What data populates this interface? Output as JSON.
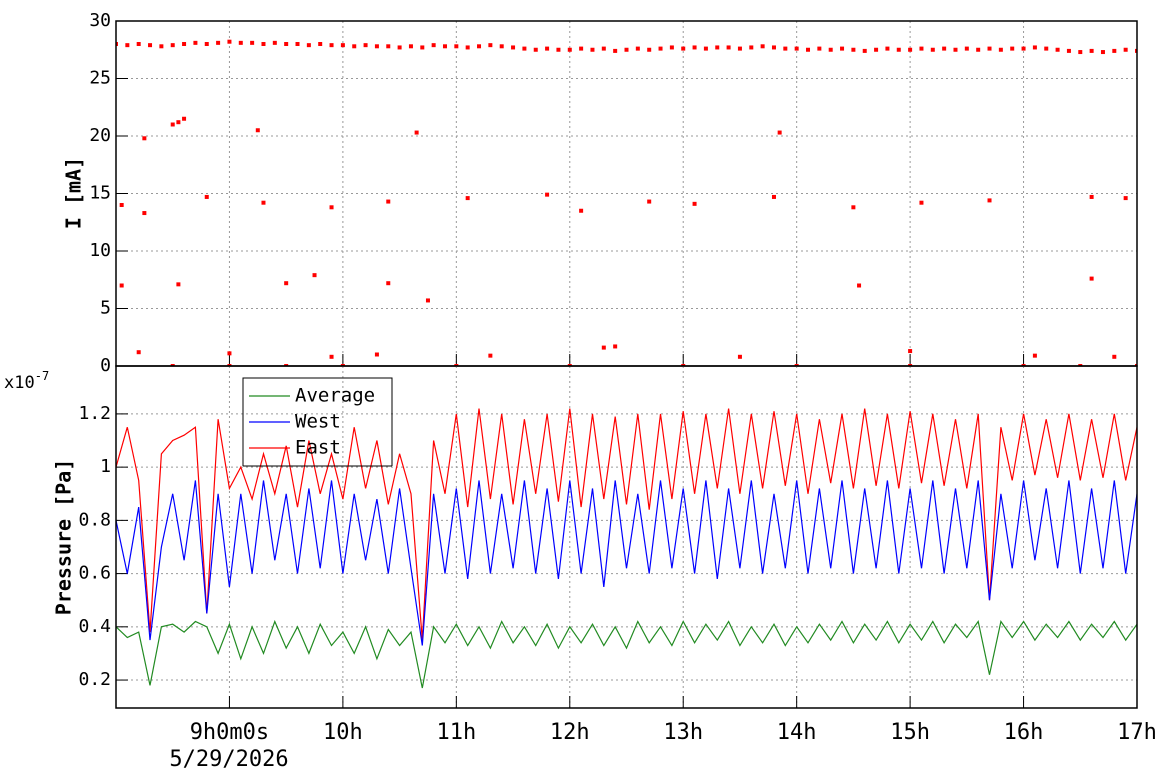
{
  "chart_data": [
    {
      "type": "scatter",
      "y_label": "I [mA]",
      "color": "#ff0000",
      "grid": true,
      "xlim": [
        8,
        17
      ],
      "ylim": [
        0,
        30
      ],
      "yticks": [
        0,
        5,
        10,
        15,
        20,
        25,
        30
      ],
      "xticks": [
        9,
        10,
        11,
        12,
        13,
        14,
        15,
        16,
        17
      ],
      "x": [
        8,
        8.1,
        8.2,
        8.3,
        8.4,
        8.5,
        8.6,
        8.7,
        8.8,
        8.9,
        9,
        9.1,
        9.2,
        9.3,
        9.4,
        9.5,
        9.6,
        9.7,
        9.8,
        9.9,
        10,
        10.1,
        10.2,
        10.3,
        10.4,
        10.5,
        10.6,
        10.7,
        10.8,
        10.9,
        11,
        11.1,
        11.2,
        11.3,
        11.4,
        11.5,
        11.6,
        11.7,
        11.8,
        11.9,
        12,
        12.1,
        12.2,
        12.3,
        12.4,
        12.5,
        12.6,
        12.7,
        12.8,
        12.9,
        13,
        13.1,
        13.2,
        13.3,
        13.4,
        13.5,
        13.6,
        13.7,
        13.8,
        13.9,
        14,
        14.1,
        14.2,
        14.3,
        14.4,
        14.5,
        14.6,
        14.7,
        14.8,
        14.9,
        15,
        15.1,
        15.2,
        15.3,
        15.4,
        15.5,
        15.6,
        15.7,
        15.8,
        15.9,
        16,
        16.1,
        16.2,
        16.3,
        16.4,
        16.5,
        16.6,
        16.7,
        16.8,
        16.9,
        17,
        8.55,
        8.5,
        8.6,
        8.25,
        9.25,
        10.65,
        13.85,
        8.8,
        9.3,
        9.9,
        10.4,
        11.1,
        11.8,
        12.1,
        12.7,
        13.1,
        13.8,
        14.5,
        15.1,
        15.7,
        16.6,
        16.9,
        9.5,
        9.75,
        10.4,
        10.75,
        14.55,
        16.6,
        8.55,
        8.05,
        8.05,
        8.25,
        8.2,
        9,
        9.9,
        10.3,
        11.3,
        12.3,
        12.4,
        13.5,
        15,
        16.1,
        16.8,
        8.5,
        9,
        9.5,
        10,
        11,
        12,
        13,
        14,
        15,
        16,
        16.5,
        17
      ],
      "values": [
        28,
        27.9,
        28,
        27.9,
        27.8,
        27.9,
        28,
        28.1,
        28,
        28.1,
        28.2,
        28.1,
        28.1,
        28,
        28.1,
        28,
        28,
        27.9,
        28,
        27.9,
        27.9,
        27.8,
        27.9,
        27.8,
        27.8,
        27.7,
        27.8,
        27.7,
        27.9,
        27.8,
        27.8,
        27.7,
        27.8,
        27.9,
        27.8,
        27.7,
        27.6,
        27.5,
        27.6,
        27.5,
        27.5,
        27.6,
        27.5,
        27.6,
        27.4,
        27.5,
        27.6,
        27.5,
        27.6,
        27.7,
        27.6,
        27.7,
        27.6,
        27.7,
        27.7,
        27.6,
        27.7,
        27.8,
        27.7,
        27.6,
        27.6,
        27.5,
        27.6,
        27.5,
        27.6,
        27.5,
        27.4,
        27.5,
        27.6,
        27.5,
        27.5,
        27.6,
        27.5,
        27.6,
        27.5,
        27.6,
        27.5,
        27.6,
        27.5,
        27.6,
        27.6,
        27.7,
        27.6,
        27.5,
        27.4,
        27.3,
        27.4,
        27.3,
        27.4,
        27.5,
        27.4,
        21.2,
        21,
        21.5,
        19.8,
        20.5,
        20.3,
        20.3,
        14.7,
        14.2,
        13.8,
        14.3,
        14.6,
        14.9,
        13.5,
        14.3,
        14.1,
        14.7,
        13.8,
        14.2,
        14.4,
        14.7,
        14.6,
        7.2,
        7.9,
        7.2,
        5.7,
        7,
        7.6,
        7.1,
        7,
        14,
        13.3,
        1.2,
        1.1,
        0.8,
        1,
        0.9,
        1.6,
        1.7,
        0.8,
        1.3,
        0.9,
        0.8,
        0,
        0,
        0,
        0,
        0,
        0,
        0,
        0,
        0,
        0,
        0,
        0
      ]
    },
    {
      "type": "line",
      "y_label": "Pressure [Pa]",
      "y_multiplier": {
        "base": "x10",
        "exponent": "-7"
      },
      "grid": true,
      "time_offset_label": "5/29/2026",
      "xlim": [
        8,
        17
      ],
      "ylim": [
        0.095,
        1.38
      ],
      "yticks": [
        0.2,
        0.4,
        0.6,
        0.8,
        1,
        1.2
      ],
      "xticks": [
        {
          "value": 9,
          "label": "9h0m0s"
        },
        {
          "value": 10,
          "label": "10h"
        },
        {
          "value": 11,
          "label": "11h"
        },
        {
          "value": 12,
          "label": "12h"
        },
        {
          "value": 13,
          "label": "13h"
        },
        {
          "value": 14,
          "label": "14h"
        },
        {
          "value": 15,
          "label": "15h"
        },
        {
          "value": 16,
          "label": "16h"
        },
        {
          "value": 17,
          "label": "17h"
        }
      ],
      "x": [
        8,
        8.1,
        8.2,
        8.3,
        8.4,
        8.5,
        8.6,
        8.7,
        8.8,
        8.9,
        9,
        9.1,
        9.2,
        9.3,
        9.4,
        9.5,
        9.6,
        9.7,
        9.8,
        9.9,
        10,
        10.1,
        10.2,
        10.3,
        10.4,
        10.5,
        10.6,
        10.7,
        10.8,
        10.9,
        11,
        11.1,
        11.2,
        11.3,
        11.4,
        11.5,
        11.6,
        11.7,
        11.8,
        11.9,
        12,
        12.1,
        12.2,
        12.3,
        12.4,
        12.5,
        12.6,
        12.7,
        12.8,
        12.9,
        13,
        13.1,
        13.2,
        13.3,
        13.4,
        13.5,
        13.6,
        13.7,
        13.8,
        13.9,
        14,
        14.1,
        14.2,
        14.3,
        14.4,
        14.5,
        14.6,
        14.7,
        14.8,
        14.9,
        15,
        15.1,
        15.2,
        15.3,
        15.4,
        15.5,
        15.6,
        15.7,
        15.8,
        15.9,
        16,
        16.1,
        16.2,
        16.3,
        16.4,
        16.5,
        16.6,
        16.7,
        16.8,
        16.9,
        17
      ],
      "series": [
        {
          "name": "Average",
          "color": "#228b22",
          "values": [
            0.4,
            0.36,
            0.38,
            0.18,
            0.4,
            0.41,
            0.38,
            0.42,
            0.4,
            0.3,
            0.41,
            0.28,
            0.4,
            0.3,
            0.42,
            0.32,
            0.4,
            0.3,
            0.41,
            0.33,
            0.38,
            0.3,
            0.4,
            0.28,
            0.39,
            0.33,
            0.38,
            0.17,
            0.4,
            0.34,
            0.41,
            0.33,
            0.4,
            0.32,
            0.42,
            0.34,
            0.4,
            0.33,
            0.41,
            0.32,
            0.4,
            0.34,
            0.41,
            0.33,
            0.4,
            0.32,
            0.42,
            0.34,
            0.4,
            0.33,
            0.42,
            0.34,
            0.41,
            0.35,
            0.42,
            0.33,
            0.4,
            0.34,
            0.41,
            0.33,
            0.4,
            0.34,
            0.41,
            0.35,
            0.42,
            0.34,
            0.41,
            0.35,
            0.42,
            0.34,
            0.41,
            0.35,
            0.42,
            0.34,
            0.41,
            0.36,
            0.42,
            0.22,
            0.42,
            0.36,
            0.42,
            0.35,
            0.41,
            0.36,
            0.42,
            0.35,
            0.41,
            0.36,
            0.42,
            0.35,
            0.41
          ]
        },
        {
          "name": "West",
          "color": "#0000ff",
          "values": [
            0.8,
            0.6,
            0.85,
            0.35,
            0.7,
            0.9,
            0.65,
            0.95,
            0.45,
            0.9,
            0.55,
            0.9,
            0.6,
            0.95,
            0.65,
            0.9,
            0.6,
            0.92,
            0.62,
            0.95,
            0.6,
            0.9,
            0.65,
            0.88,
            0.6,
            0.92,
            0.62,
            0.33,
            0.9,
            0.6,
            0.92,
            0.58,
            0.95,
            0.6,
            0.9,
            0.62,
            0.95,
            0.6,
            0.92,
            0.58,
            0.95,
            0.6,
            0.92,
            0.55,
            0.95,
            0.62,
            0.9,
            0.6,
            0.95,
            0.62,
            0.92,
            0.6,
            0.95,
            0.58,
            0.92,
            0.62,
            0.95,
            0.6,
            0.9,
            0.62,
            0.95,
            0.6,
            0.92,
            0.62,
            0.95,
            0.6,
            0.92,
            0.62,
            0.95,
            0.6,
            0.92,
            0.62,
            0.95,
            0.6,
            0.92,
            0.62,
            0.95,
            0.5,
            0.9,
            0.62,
            0.95,
            0.65,
            0.92,
            0.62,
            0.95,
            0.6,
            0.92,
            0.62,
            0.95,
            0.6,
            0.9
          ]
        },
        {
          "name": "East",
          "color": "#ff0000",
          "values": [
            1,
            1.15,
            0.95,
            0.38,
            1.05,
            1.1,
            1.12,
            1.15,
            0.45,
            1.18,
            0.92,
            1,
            0.88,
            1.05,
            0.9,
            1.08,
            0.85,
            1.1,
            0.9,
            1.05,
            0.88,
            1.15,
            0.92,
            1.1,
            0.86,
            1.05,
            0.9,
            0.35,
            1.1,
            0.9,
            1.2,
            0.85,
            1.22,
            0.88,
            1.2,
            0.86,
            1.18,
            0.9,
            1.2,
            0.87,
            1.22,
            0.85,
            1.2,
            0.88,
            1.19,
            0.86,
            1.2,
            0.84,
            1.2,
            0.88,
            1.21,
            0.9,
            1.2,
            0.92,
            1.22,
            0.9,
            1.2,
            0.92,
            1.21,
            0.93,
            1.2,
            0.9,
            1.18,
            0.94,
            1.2,
            0.92,
            1.22,
            0.93,
            1.2,
            0.92,
            1.21,
            0.94,
            1.2,
            0.93,
            1.18,
            0.92,
            1.2,
            0.5,
            1.15,
            0.95,
            1.2,
            0.97,
            1.18,
            0.96,
            1.2,
            0.95,
            1.18,
            0.96,
            1.2,
            0.95,
            1.15
          ]
        }
      ]
    }
  ]
}
